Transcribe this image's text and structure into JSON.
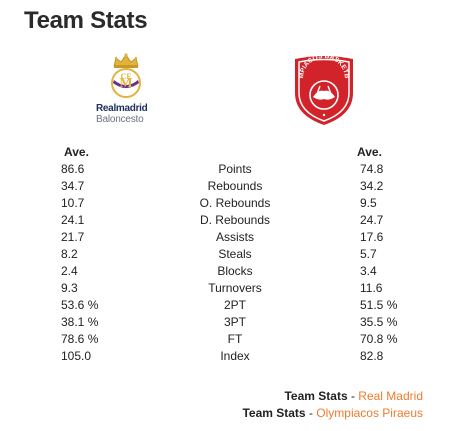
{
  "page": {
    "title": "Team Stats"
  },
  "teams": {
    "left": {
      "logo_text_1": "Realmadrid",
      "logo_text_2": "Baloncesto",
      "icon": "real-madrid-crest"
    },
    "right": {
      "logo_text": "OLYMPIACOS BASKETBALL",
      "icon": "olympiacos-crest"
    }
  },
  "stats": {
    "header_left": "Ave.",
    "header_right": "Ave.",
    "rows": [
      {
        "label": "Points",
        "left": "86.6",
        "right": "74.8"
      },
      {
        "label": "Rebounds",
        "left": "34.7",
        "right": "34.2"
      },
      {
        "label": "O. Rebounds",
        "left": "10.7",
        "right": "9.5"
      },
      {
        "label": "D. Rebounds",
        "left": "24.1",
        "right": "24.7"
      },
      {
        "label": "Assists",
        "left": "21.7",
        "right": "17.6"
      },
      {
        "label": "Steals",
        "left": "8.2",
        "right": "5.7"
      },
      {
        "label": "Blocks",
        "left": "2.4",
        "right": "3.4"
      },
      {
        "label": "Turnovers",
        "left": "9.3",
        "right": "11.6"
      },
      {
        "label": "2PT",
        "left": "53.6 %",
        "right": "51.5 %"
      },
      {
        "label": "3PT",
        "left": "38.1 %",
        "right": "35.5 %"
      },
      {
        "label": "FT",
        "left": "78.6 %",
        "right": "70.8 %"
      },
      {
        "label": "Index",
        "left": "105.0",
        "right": "82.8"
      }
    ]
  },
  "links": [
    {
      "label": "Team Stats",
      "separator": " - ",
      "team": "Real Madrid"
    },
    {
      "label": "Team Stats",
      "separator": " - ",
      "team": "Olympiacos Piraeus"
    }
  ],
  "colors": {
    "link": "#f07a2e",
    "olympiacos_red": "#d2232a",
    "madrid_navy": "#1f2f60",
    "madrid_gold": "#e2b43b"
  }
}
